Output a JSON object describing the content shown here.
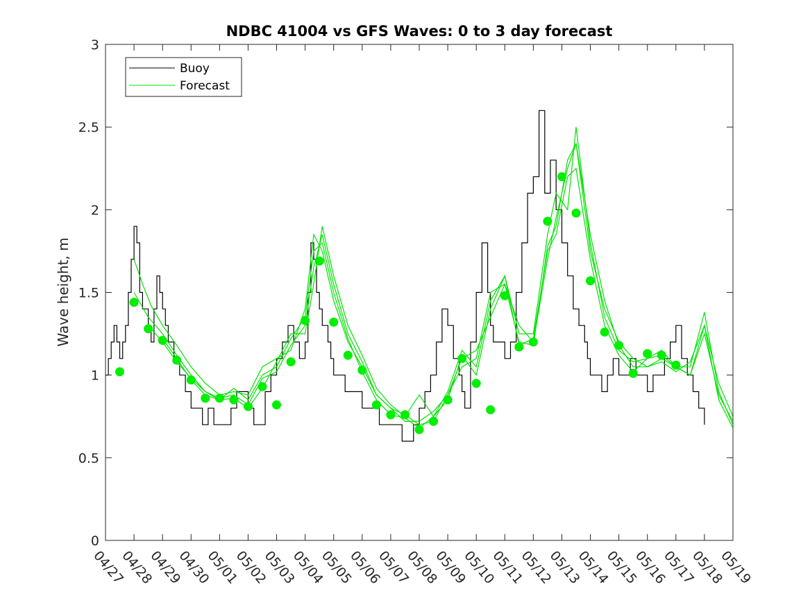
{
  "chart_data": {
    "type": "line",
    "title": "NDBC 41004 vs GFS Waves: 0 to 3 day forecast",
    "xlabel": "",
    "ylabel": "Wave height, m",
    "ylim": [
      0,
      3
    ],
    "xlim_days": [
      0,
      22
    ],
    "x_tick_labels": [
      "04/27",
      "04/28",
      "04/29",
      "04/30",
      "05/01",
      "05/02",
      "05/03",
      "05/04",
      "05/05",
      "05/06",
      "05/07",
      "05/08",
      "05/09",
      "05/10",
      "05/11",
      "05/12",
      "05/13",
      "05/14",
      "05/15",
      "05/16",
      "05/17",
      "05/18",
      "05/19"
    ],
    "y_ticks": [
      0,
      0.5,
      1,
      1.5,
      2,
      2.5,
      3
    ],
    "y_tick_labels": [
      "0",
      "0.5",
      "1",
      "1.5",
      "2",
      "2.5",
      "3"
    ],
    "grid": false,
    "legend": {
      "position": "top-left",
      "entries": [
        "Buoy",
        "Forecast"
      ]
    },
    "colors": {
      "buoy": "#000000",
      "forecast": "#00e000",
      "markers": "#00ee00"
    },
    "buoy": {
      "name": "Buoy",
      "x": [
        0,
        0.1,
        0.2,
        0.3,
        0.4,
        0.5,
        0.6,
        0.7,
        0.8,
        0.9,
        1.0,
        1.1,
        1.2,
        1.3,
        1.4,
        1.5,
        1.6,
        1.7,
        1.8,
        1.9,
        2.0,
        2.1,
        2.2,
        2.3,
        2.4,
        2.5,
        2.6,
        2.7,
        2.8,
        2.9,
        3.0,
        3.2,
        3.4,
        3.6,
        3.8,
        4.0,
        4.2,
        4.4,
        4.6,
        4.8,
        5.0,
        5.2,
        5.4,
        5.6,
        5.8,
        6.0,
        6.2,
        6.4,
        6.6,
        6.8,
        7.0,
        7.1,
        7.2,
        7.3,
        7.4,
        7.5,
        7.6,
        7.7,
        7.8,
        7.9,
        8.0,
        8.2,
        8.4,
        8.6,
        8.8,
        9.0,
        9.2,
        9.4,
        9.6,
        9.8,
        10.0,
        10.2,
        10.4,
        10.6,
        10.8,
        11.0,
        11.2,
        11.4,
        11.6,
        11.8,
        12.0,
        12.2,
        12.4,
        12.5,
        12.6,
        12.8,
        13.0,
        13.2,
        13.4,
        13.5,
        13.6,
        13.8,
        14.0,
        14.2,
        14.4,
        14.6,
        14.8,
        15.0,
        15.2,
        15.4,
        15.6,
        15.8,
        16.0,
        16.2,
        16.4,
        16.6,
        16.8,
        16.9,
        17.0,
        17.1,
        17.2,
        17.4,
        17.6,
        17.8,
        18.0,
        18.2,
        18.4,
        18.6,
        18.8,
        19.0,
        19.2,
        19.4,
        19.6,
        19.8,
        20.0,
        20.2,
        20.4,
        20.6,
        20.8,
        21.0
      ],
      "values": [
        1.0,
        1.1,
        1.2,
        1.3,
        1.2,
        1.1,
        1.2,
        1.3,
        1.5,
        1.7,
        1.9,
        1.8,
        1.5,
        1.4,
        1.4,
        1.3,
        1.2,
        1.4,
        1.6,
        1.5,
        1.4,
        1.3,
        1.2,
        1.2,
        1.1,
        1.1,
        1.0,
        1.0,
        0.9,
        0.9,
        0.8,
        0.8,
        0.7,
        0.8,
        0.7,
        0.7,
        0.7,
        0.8,
        0.9,
        0.9,
        0.8,
        0.7,
        0.7,
        0.9,
        1.0,
        1.1,
        1.2,
        1.3,
        1.2,
        1.1,
        1.2,
        1.5,
        1.8,
        1.7,
        1.5,
        1.4,
        1.3,
        1.3,
        1.2,
        1.1,
        1.0,
        1.0,
        0.9,
        0.9,
        0.9,
        0.8,
        0.8,
        0.8,
        0.7,
        0.7,
        0.7,
        0.7,
        0.6,
        0.6,
        0.7,
        0.8,
        0.9,
        1.0,
        1.2,
        1.4,
        1.3,
        1.1,
        1.0,
        0.9,
        0.8,
        1.2,
        1.5,
        1.8,
        1.5,
        1.3,
        1.2,
        1.2,
        1.1,
        1.2,
        1.5,
        1.8,
        2.1,
        2.2,
        2.6,
        2.1,
        2.3,
        2.0,
        1.8,
        1.6,
        1.4,
        1.3,
        1.2,
        1.1,
        1.0,
        1.0,
        1.0,
        0.9,
        1.0,
        1.1,
        1.0,
        1.0,
        1.1,
        1.0,
        1.0,
        0.9,
        1.0,
        1.0,
        1.1,
        1.2,
        1.3,
        1.1,
        1.0,
        0.9,
        0.8,
        0.7
      ]
    },
    "forecast_markers": {
      "name": "Forecast",
      "x": [
        0.5,
        1.0,
        1.5,
        2.0,
        2.5,
        3.0,
        3.5,
        4.0,
        4.5,
        5.0,
        5.5,
        6.0,
        6.5,
        7.0,
        7.5,
        8.0,
        8.5,
        9.0,
        9.5,
        10.0,
        10.5,
        11.0,
        11.5,
        12.0,
        12.5,
        13.0,
        13.5,
        14.0,
        14.5,
        15.0,
        15.5,
        16.0,
        16.5,
        17.0,
        17.5,
        18.0,
        18.5,
        19.0,
        19.5,
        20.0
      ],
      "values": [
        1.02,
        1.44,
        1.28,
        1.21,
        1.09,
        0.97,
        0.86,
        0.86,
        0.85,
        0.81,
        0.93,
        0.82,
        1.08,
        1.33,
        1.69,
        1.32,
        1.12,
        1.03,
        0.82,
        0.76,
        0.76,
        0.67,
        0.72,
        0.85,
        1.1,
        0.95,
        0.79,
        1.48,
        1.17,
        1.2,
        1.93,
        2.2,
        1.98,
        1.57,
        1.26,
        1.18,
        1.01,
        1.13,
        1.12,
        1.06
      ]
    },
    "forecast_runs": [
      {
        "x": [
          1.0,
          1.3,
          1.6,
          2.0,
          2.5,
          3.0,
          3.5,
          4.0,
          4.5,
          5.0,
          5.5,
          6.0,
          6.5,
          7.0,
          7.3,
          7.6,
          8.0,
          8.5,
          9.0,
          9.5,
          10.0,
          10.5,
          11.0,
          11.5,
          12.0,
          12.5,
          13.0,
          13.5,
          14.0,
          14.5,
          15.0,
          15.5,
          15.8,
          16.2,
          16.5,
          17.0,
          17.5,
          18.0,
          18.5,
          19.0,
          19.5,
          20.0,
          20.5,
          21.0,
          21.5,
          22.0
        ],
        "values": [
          1.7,
          1.55,
          1.42,
          1.3,
          1.18,
          1.05,
          0.95,
          0.88,
          0.9,
          0.88,
          1.05,
          1.1,
          1.15,
          1.4,
          1.85,
          1.75,
          1.45,
          1.2,
          1.05,
          0.88,
          0.8,
          0.76,
          0.7,
          0.72,
          0.88,
          1.1,
          1.15,
          1.35,
          1.55,
          1.3,
          1.2,
          1.7,
          1.95,
          2.25,
          2.4,
          1.75,
          1.4,
          1.2,
          1.1,
          1.05,
          1.1,
          1.05,
          1.0,
          1.3,
          0.95,
          0.75
        ]
      },
      {
        "x": [
          1.0,
          1.5,
          2.0,
          2.5,
          3.0,
          3.5,
          4.0,
          4.5,
          5.0,
          5.5,
          6.0,
          6.5,
          7.0,
          7.3,
          7.6,
          8.0,
          8.5,
          9.0,
          9.5,
          10.0,
          10.5,
          11.0,
          11.5,
          12.0,
          12.5,
          13.0,
          13.5,
          14.0,
          14.5,
          15.0,
          15.5,
          15.8,
          16.2,
          16.5,
          17.0,
          17.5,
          18.0,
          18.5,
          19.0,
          19.5,
          20.0,
          20.5,
          21.0,
          21.5,
          22.0
        ],
        "values": [
          1.5,
          1.35,
          1.25,
          1.12,
          1.0,
          0.9,
          0.85,
          0.92,
          0.85,
          1.0,
          1.05,
          1.22,
          1.35,
          1.75,
          1.8,
          1.5,
          1.22,
          1.02,
          0.85,
          0.76,
          0.74,
          0.68,
          0.75,
          0.9,
          1.15,
          1.05,
          1.45,
          1.6,
          1.25,
          1.25,
          1.85,
          2.1,
          2.0,
          2.5,
          1.8,
          1.35,
          1.15,
          1.08,
          1.1,
          1.15,
          1.05,
          1.05,
          1.38,
          0.9,
          0.7
        ]
      },
      {
        "x": [
          1.5,
          2.0,
          2.5,
          3.0,
          3.5,
          4.0,
          4.5,
          5.0,
          5.5,
          6.0,
          6.5,
          7.0,
          7.3,
          7.6,
          8.0,
          8.5,
          9.0,
          9.5,
          10.0,
          10.5,
          11.0,
          11.5,
          12.0,
          12.5,
          13.0,
          13.5,
          14.0,
          14.5,
          15.0,
          15.5,
          15.8,
          16.2,
          16.5,
          17.0,
          17.5,
          18.0,
          18.5,
          19.0,
          19.5,
          20.0,
          20.5,
          21.0,
          21.5,
          22.0
        ],
        "values": [
          1.3,
          1.2,
          1.08,
          0.98,
          0.9,
          0.86,
          0.88,
          0.82,
          0.98,
          1.02,
          1.18,
          1.3,
          1.65,
          1.85,
          1.55,
          1.25,
          1.08,
          0.88,
          0.8,
          0.72,
          0.72,
          0.78,
          0.88,
          1.05,
          1.1,
          1.5,
          1.55,
          1.2,
          1.18,
          1.78,
          1.9,
          2.3,
          2.4,
          1.85,
          1.45,
          1.18,
          1.05,
          1.05,
          1.08,
          1.02,
          1.08,
          1.3,
          0.85,
          0.68
        ]
      },
      {
        "x": [
          2.0,
          2.5,
          3.0,
          3.5,
          4.0,
          4.5,
          5.0,
          5.5,
          6.0,
          6.5,
          7.0,
          7.3,
          7.6,
          8.0,
          8.5,
          9.0,
          9.5,
          10.0,
          10.5,
          11.0,
          11.5,
          12.0,
          12.5,
          13.0,
          13.5,
          14.0,
          14.5,
          15.0,
          15.5,
          15.8,
          16.2,
          16.5,
          17.0,
          17.5,
          18.0,
          18.5,
          19.0,
          19.5,
          20.0,
          20.5,
          21.0,
          21.5,
          22.0
        ],
        "values": [
          1.22,
          1.1,
          0.97,
          0.88,
          0.85,
          0.86,
          0.8,
          0.92,
          1.08,
          1.25,
          1.25,
          1.55,
          1.9,
          1.6,
          1.3,
          1.12,
          0.92,
          0.82,
          0.75,
          0.88,
          0.75,
          0.85,
          1.12,
          1.0,
          1.4,
          1.6,
          1.18,
          1.22,
          1.75,
          1.85,
          2.2,
          2.25,
          1.7,
          1.3,
          1.12,
          1.02,
          1.1,
          1.12,
          1.05,
          1.0,
          1.25,
          0.88,
          0.72
        ]
      }
    ]
  }
}
